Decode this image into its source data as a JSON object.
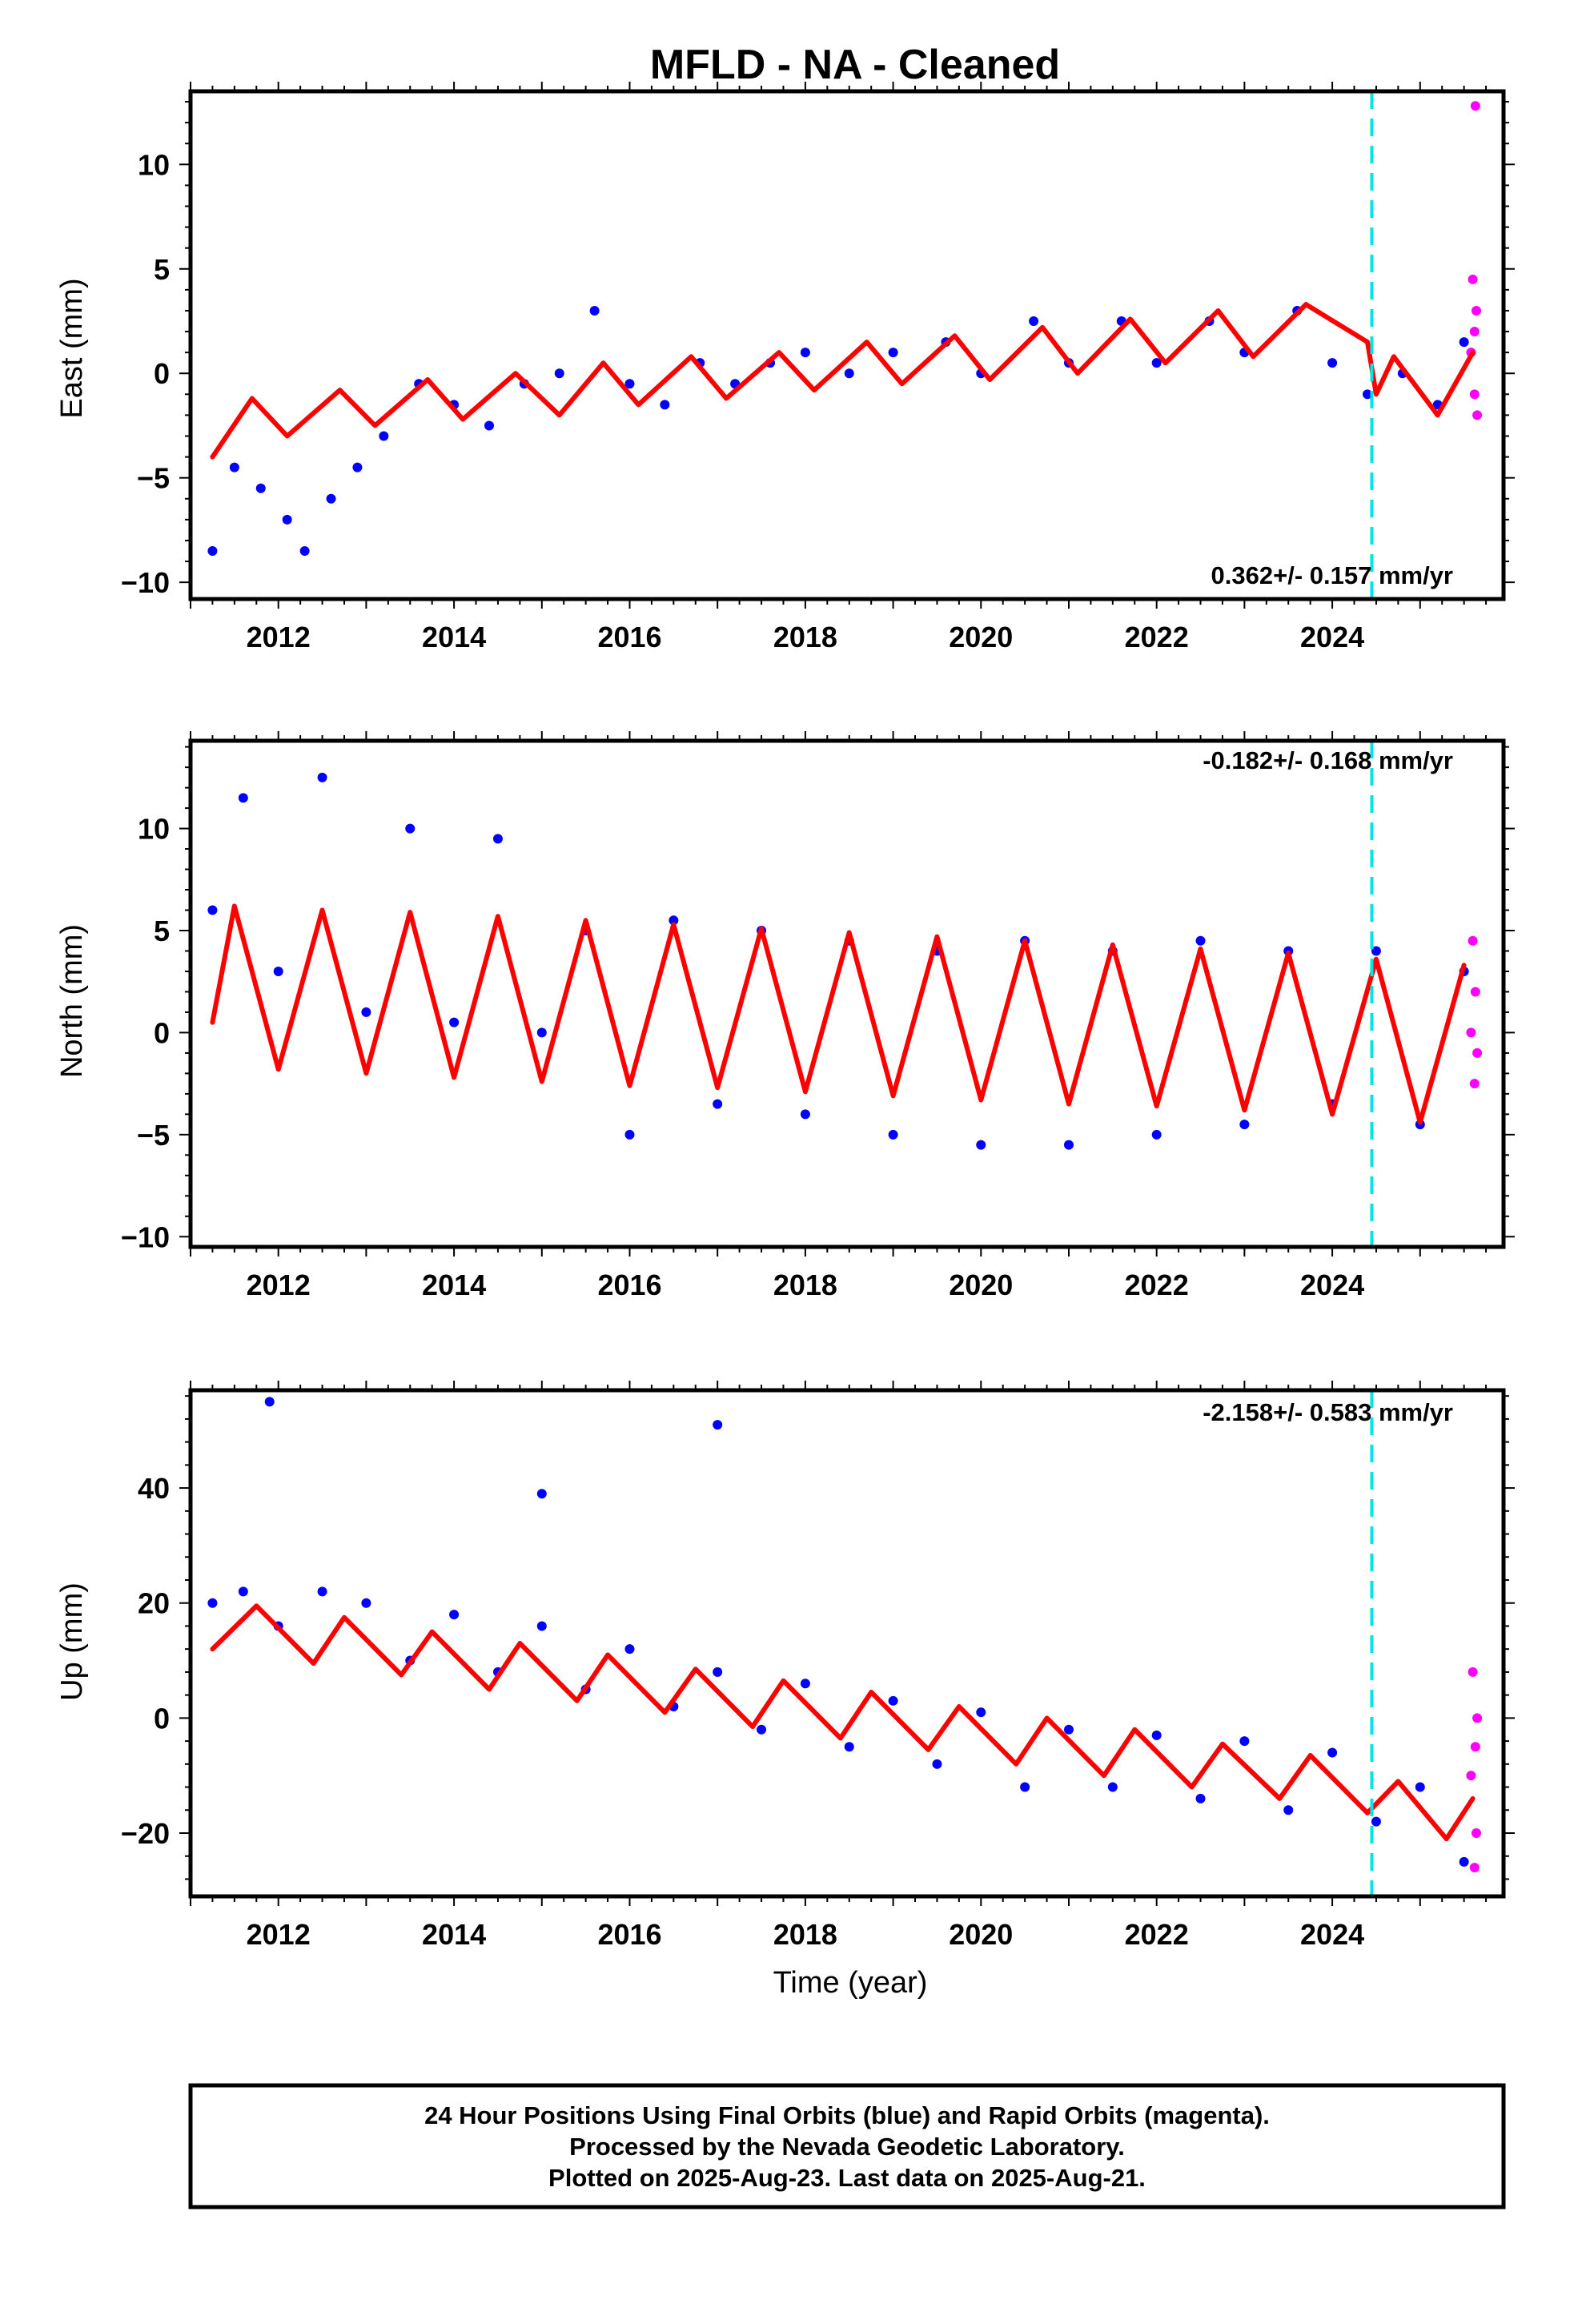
{
  "title": "MFLD  - NA - Cleaned",
  "xlabel": "Time (year)",
  "footer": [
    "24 Hour Positions Using Final Orbits (blue) and Rapid Orbits (magenta).",
    "Processed by the Nevada Geodetic Laboratory.",
    "Plotted on 2025-Aug-23. Last data on 2025-Aug-21."
  ],
  "colors": {
    "final_orbits": "#0000ff",
    "rapid_orbits": "#ff00ff",
    "model": "#ff0000",
    "break_line": "#00e5e5"
  },
  "chart_data": [
    {
      "type": "scatter",
      "ylabel": "East (mm)",
      "xlim": [
        2011.0,
        2025.95
      ],
      "ylim": [
        -10.8,
        13.5
      ],
      "yticks": [
        -10,
        -5,
        0,
        5,
        10
      ],
      "xticks": [
        2012,
        2014,
        2016,
        2018,
        2020,
        2022,
        2024
      ],
      "rate_text": "0.362+/- 0.157 mm/yr",
      "rate_position": "bottom-right",
      "break_line_x": 2024.45,
      "series": [
        {
          "name": "Final Orbits",
          "color": "blue",
          "representative_points": [
            [
              2011.25,
              -8.5
            ],
            [
              2011.5,
              -4.5
            ],
            [
              2011.8,
              -5.5
            ],
            [
              2012.1,
              -7.0
            ],
            [
              2012.3,
              -8.5
            ],
            [
              2012.6,
              -6.0
            ],
            [
              2012.9,
              -4.5
            ],
            [
              2013.2,
              -3.0
            ],
            [
              2013.6,
              -0.5
            ],
            [
              2014.0,
              -1.5
            ],
            [
              2014.4,
              -2.5
            ],
            [
              2014.8,
              -0.5
            ],
            [
              2015.2,
              0.0
            ],
            [
              2015.6,
              3.0
            ],
            [
              2016.0,
              -0.5
            ],
            [
              2016.4,
              -1.5
            ],
            [
              2016.8,
              0.5
            ],
            [
              2017.2,
              -0.5
            ],
            [
              2017.6,
              0.5
            ],
            [
              2018.0,
              1.0
            ],
            [
              2018.5,
              0.0
            ],
            [
              2019.0,
              1.0
            ],
            [
              2019.6,
              1.5
            ],
            [
              2020.0,
              0.0
            ],
            [
              2020.6,
              2.5
            ],
            [
              2021.0,
              0.5
            ],
            [
              2021.6,
              2.5
            ],
            [
              2022.0,
              0.5
            ],
            [
              2022.6,
              2.5
            ],
            [
              2023.0,
              1.0
            ],
            [
              2023.6,
              3.0
            ],
            [
              2024.0,
              0.5
            ],
            [
              2024.4,
              -1.0
            ],
            [
              2024.8,
              0.0
            ],
            [
              2025.2,
              -1.5
            ],
            [
              2025.5,
              1.5
            ]
          ]
        },
        {
          "name": "Rapid Orbits",
          "color": "magenta",
          "representative_points": [
            [
              2025.58,
              1.0
            ],
            [
              2025.6,
              4.5
            ],
            [
              2025.62,
              -1.0
            ],
            [
              2025.62,
              2.0
            ],
            [
              2025.63,
              12.8
            ],
            [
              2025.64,
              3.0
            ],
            [
              2025.65,
              -2.0
            ]
          ]
        },
        {
          "name": "Model",
          "color": "red",
          "representative_points": [
            [
              2011.25,
              -4.0
            ],
            [
              2011.7,
              -1.2
            ],
            [
              2012.1,
              -3.0
            ],
            [
              2012.7,
              -0.8
            ],
            [
              2013.1,
              -2.5
            ],
            [
              2013.7,
              -0.3
            ],
            [
              2014.1,
              -2.2
            ],
            [
              2014.7,
              0.0
            ],
            [
              2015.2,
              -2.0
            ],
            [
              2015.7,
              0.5
            ],
            [
              2016.1,
              -1.5
            ],
            [
              2016.7,
              0.8
            ],
            [
              2017.1,
              -1.2
            ],
            [
              2017.7,
              1.0
            ],
            [
              2018.1,
              -0.8
            ],
            [
              2018.7,
              1.5
            ],
            [
              2019.1,
              -0.5
            ],
            [
              2019.7,
              1.8
            ],
            [
              2020.1,
              -0.3
            ],
            [
              2020.7,
              2.2
            ],
            [
              2021.1,
              0.0
            ],
            [
              2021.7,
              2.6
            ],
            [
              2022.1,
              0.5
            ],
            [
              2022.7,
              3.0
            ],
            [
              2023.1,
              0.8
            ],
            [
              2023.7,
              3.3
            ],
            [
              2024.4,
              1.5
            ],
            [
              2024.5,
              -1.0
            ],
            [
              2024.7,
              0.8
            ],
            [
              2025.2,
              -2.0
            ],
            [
              2025.6,
              1.0
            ]
          ]
        }
      ]
    },
    {
      "type": "scatter",
      "ylabel": "North (mm)",
      "xlim": [
        2011.0,
        2025.95
      ],
      "ylim": [
        -10.5,
        14.3
      ],
      "yticks": [
        -10,
        -5,
        0,
        5,
        10
      ],
      "xticks": [
        2012,
        2014,
        2016,
        2018,
        2020,
        2022,
        2024
      ],
      "rate_text": "-0.182+/- 0.168 mm/yr",
      "rate_position": "top-right",
      "break_line_x": 2024.45,
      "series": [
        {
          "name": "Final Orbits",
          "color": "blue",
          "representative_points": [
            [
              2011.25,
              6.0
            ],
            [
              2011.6,
              11.5
            ],
            [
              2012.0,
              3.0
            ],
            [
              2012.5,
              12.5
            ],
            [
              2013.0,
              1.0
            ],
            [
              2013.5,
              10.0
            ],
            [
              2014.0,
              0.5
            ],
            [
              2014.5,
              9.5
            ],
            [
              2015.0,
              0.0
            ],
            [
              2015.5,
              5.0
            ],
            [
              2016.0,
              -5.0
            ],
            [
              2016.5,
              5.5
            ],
            [
              2017.0,
              -3.5
            ],
            [
              2017.5,
              5.0
            ],
            [
              2018.0,
              -4.0
            ],
            [
              2018.5,
              4.5
            ],
            [
              2019.0,
              -5.0
            ],
            [
              2019.5,
              4.0
            ],
            [
              2020.0,
              -5.5
            ],
            [
              2020.5,
              4.5
            ],
            [
              2021.0,
              -5.5
            ],
            [
              2021.5,
              4.0
            ],
            [
              2022.0,
              -5.0
            ],
            [
              2022.5,
              4.5
            ],
            [
              2023.0,
              -4.5
            ],
            [
              2023.5,
              4.0
            ],
            [
              2024.0,
              -3.5
            ],
            [
              2024.5,
              4.0
            ],
            [
              2025.0,
              -4.5
            ],
            [
              2025.5,
              3.0
            ]
          ]
        },
        {
          "name": "Rapid Orbits",
          "color": "magenta",
          "representative_points": [
            [
              2025.58,
              0.0
            ],
            [
              2025.6,
              4.5
            ],
            [
              2025.62,
              -2.5
            ],
            [
              2025.63,
              2.0
            ],
            [
              2025.65,
              -1.0
            ]
          ]
        },
        {
          "name": "Model",
          "color": "red",
          "representative_points": [
            [
              2011.25,
              0.5
            ],
            [
              2011.5,
              6.2
            ],
            [
              2012.0,
              -1.8
            ],
            [
              2012.5,
              6.0
            ],
            [
              2013.0,
              -2.0
            ],
            [
              2013.5,
              5.9
            ],
            [
              2014.0,
              -2.2
            ],
            [
              2014.5,
              5.7
            ],
            [
              2015.0,
              -2.4
            ],
            [
              2015.5,
              5.5
            ],
            [
              2016.0,
              -2.6
            ],
            [
              2016.5,
              5.3
            ],
            [
              2017.0,
              -2.7
            ],
            [
              2017.5,
              5.1
            ],
            [
              2018.0,
              -2.9
            ],
            [
              2018.5,
              4.9
            ],
            [
              2019.0,
              -3.1
            ],
            [
              2019.5,
              4.7
            ],
            [
              2020.0,
              -3.3
            ],
            [
              2020.5,
              4.5
            ],
            [
              2021.0,
              -3.5
            ],
            [
              2021.5,
              4.3
            ],
            [
              2022.0,
              -3.6
            ],
            [
              2022.5,
              4.1
            ],
            [
              2023.0,
              -3.8
            ],
            [
              2023.5,
              3.9
            ],
            [
              2024.0,
              -4.0
            ],
            [
              2024.5,
              3.6
            ],
            [
              2025.0,
              -4.4
            ],
            [
              2025.5,
              3.3
            ]
          ]
        }
      ]
    },
    {
      "type": "scatter",
      "ylabel": "Up (mm)",
      "xlabel": "Time (year)",
      "xlim": [
        2011.0,
        2025.95
      ],
      "ylim": [
        -31,
        57
      ],
      "yticks": [
        -20,
        0,
        20,
        40
      ],
      "xticks": [
        2012,
        2014,
        2016,
        2018,
        2020,
        2022,
        2024
      ],
      "rate_text": "-2.158+/- 0.583 mm/yr",
      "rate_position": "top-right",
      "break_line_x": 2024.45,
      "series": [
        {
          "name": "Final Orbits",
          "color": "blue",
          "representative_points": [
            [
              2011.25,
              20.0
            ],
            [
              2011.6,
              22.0
            ],
            [
              2011.9,
              55.0
            ],
            [
              2012.0,
              16.0
            ],
            [
              2012.5,
              22.0
            ],
            [
              2013.0,
              20.0
            ],
            [
              2013.5,
              10.0
            ],
            [
              2014.0,
              18.0
            ],
            [
              2014.5,
              8.0
            ],
            [
              2015.0,
              16.0
            ],
            [
              2015.0,
              39.0
            ],
            [
              2015.5,
              5.0
            ],
            [
              2016.0,
              12.0
            ],
            [
              2016.5,
              2.0
            ],
            [
              2017.0,
              51.0
            ],
            [
              2017.0,
              8.0
            ],
            [
              2017.5,
              -2.0
            ],
            [
              2018.0,
              6.0
            ],
            [
              2018.5,
              -5.0
            ],
            [
              2019.0,
              3.0
            ],
            [
              2019.5,
              -8.0
            ],
            [
              2020.0,
              1.0
            ],
            [
              2020.5,
              -12.0
            ],
            [
              2021.0,
              -2.0
            ],
            [
              2021.5,
              -12.0
            ],
            [
              2022.0,
              -3.0
            ],
            [
              2022.5,
              -14.0
            ],
            [
              2023.0,
              -4.0
            ],
            [
              2023.5,
              -16.0
            ],
            [
              2024.0,
              -6.0
            ],
            [
              2024.5,
              -18.0
            ],
            [
              2025.0,
              -12.0
            ],
            [
              2025.5,
              -25.0
            ]
          ]
        },
        {
          "name": "Rapid Orbits",
          "color": "magenta",
          "representative_points": [
            [
              2025.58,
              -10.0
            ],
            [
              2025.6,
              8.0
            ],
            [
              2025.62,
              -26.0
            ],
            [
              2025.63,
              -5.0
            ],
            [
              2025.64,
              -20.0
            ],
            [
              2025.65,
              0.0
            ]
          ]
        },
        {
          "name": "Model",
          "color": "red",
          "representative_points": [
            [
              2011.25,
              12.0
            ],
            [
              2011.75,
              19.5
            ],
            [
              2012.4,
              9.5
            ],
            [
              2012.75,
              17.5
            ],
            [
              2013.4,
              7.5
            ],
            [
              2013.75,
              15.0
            ],
            [
              2014.4,
              5.0
            ],
            [
              2014.75,
              13.0
            ],
            [
              2015.4,
              3.0
            ],
            [
              2015.75,
              11.0
            ],
            [
              2016.4,
              1.0
            ],
            [
              2016.75,
              8.5
            ],
            [
              2017.4,
              -1.5
            ],
            [
              2017.75,
              6.5
            ],
            [
              2018.4,
              -3.5
            ],
            [
              2018.75,
              4.5
            ],
            [
              2019.4,
              -5.5
            ],
            [
              2019.75,
              2.0
            ],
            [
              2020.4,
              -8.0
            ],
            [
              2020.75,
              0.0
            ],
            [
              2021.4,
              -10.0
            ],
            [
              2021.75,
              -2.0
            ],
            [
              2022.4,
              -12.0
            ],
            [
              2022.75,
              -4.5
            ],
            [
              2023.4,
              -14.0
            ],
            [
              2023.75,
              -6.5
            ],
            [
              2024.4,
              -16.5
            ],
            [
              2024.75,
              -11.0
            ],
            [
              2025.3,
              -21.0
            ],
            [
              2025.6,
              -14.0
            ]
          ]
        }
      ]
    }
  ]
}
